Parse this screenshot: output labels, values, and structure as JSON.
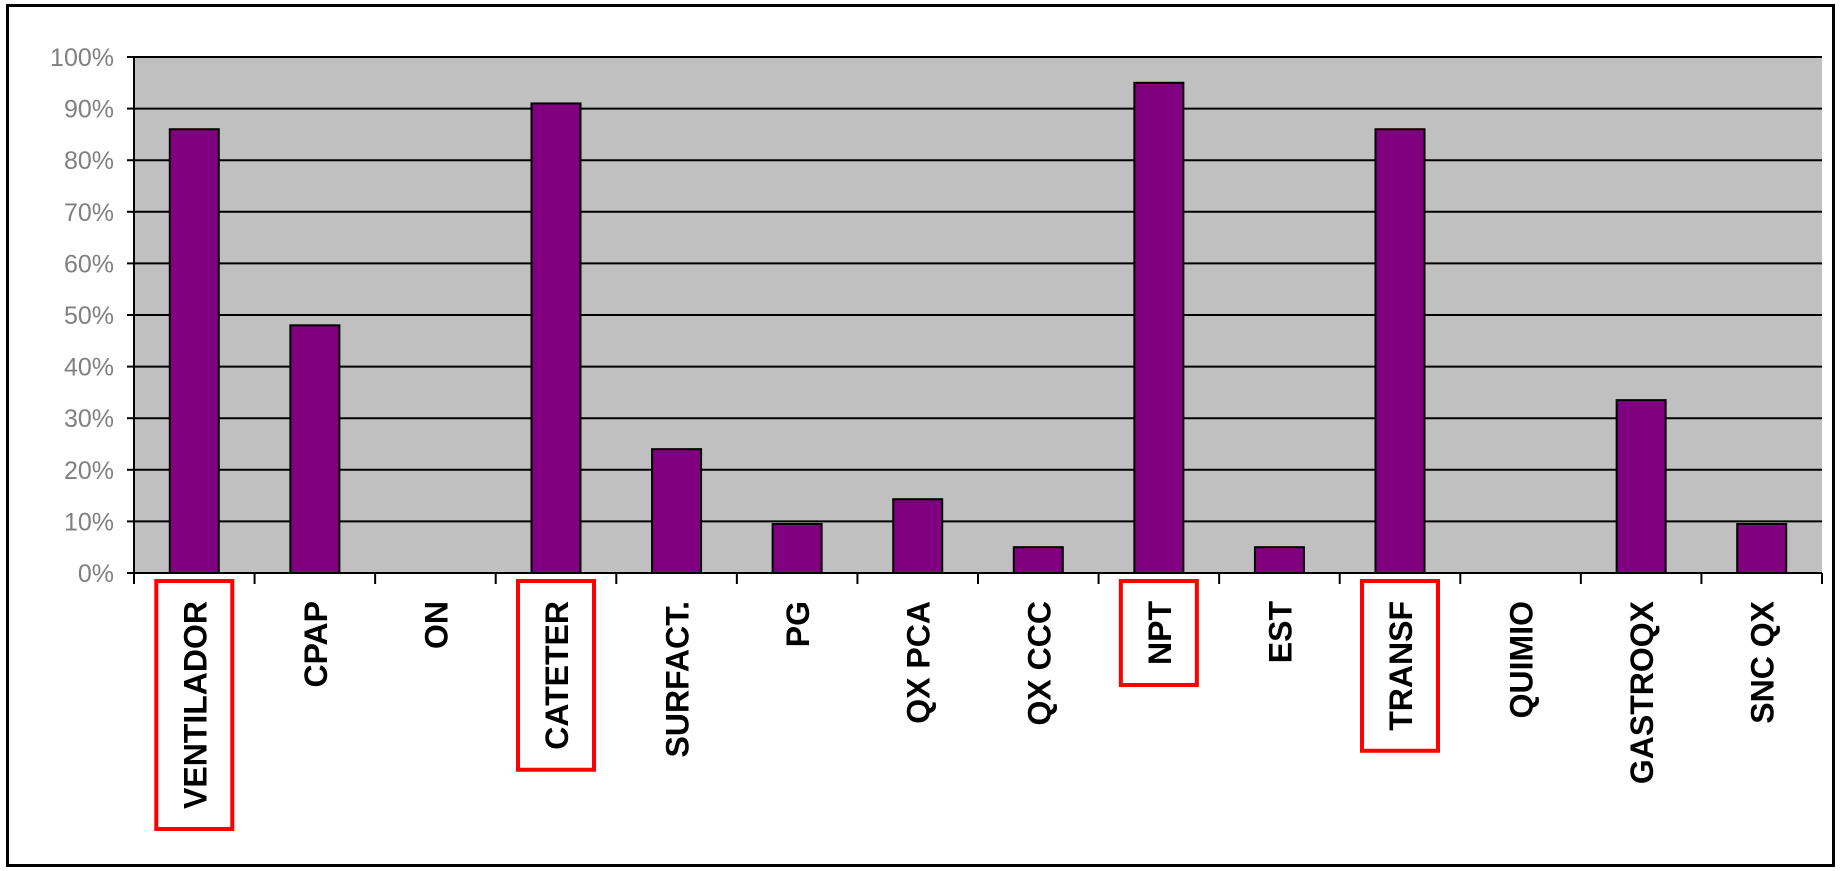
{
  "chart_data": {
    "type": "bar",
    "categories": [
      "VENTILADOR",
      "CPAP",
      "ON",
      "CATETER",
      "SURFACT.",
      "PG",
      "QX PCA",
      "QX CCC",
      "NPT",
      "EST",
      "TRANSF",
      "QUIMIO",
      "GASTROQX",
      "SNC QX"
    ],
    "values": [
      86,
      48,
      0,
      91,
      24,
      9.5,
      14.3,
      5,
      95,
      5,
      86,
      0,
      33.5,
      9.5
    ],
    "y_ticks": [
      "0%",
      "10%",
      "20%",
      "30%",
      "40%",
      "50%",
      "60%",
      "70%",
      "80%",
      "90%",
      "100%"
    ],
    "ylim": [
      0,
      100
    ],
    "grid": true,
    "highlighted": [
      "VENTILADOR",
      "CATETER",
      "NPT",
      "TRANSF"
    ],
    "colors": {
      "bar": "#800080",
      "plot_background": "#c0c0c0",
      "highlight_box": "#ff0000",
      "tick_text": "#808080",
      "category_text": "#000000"
    }
  }
}
